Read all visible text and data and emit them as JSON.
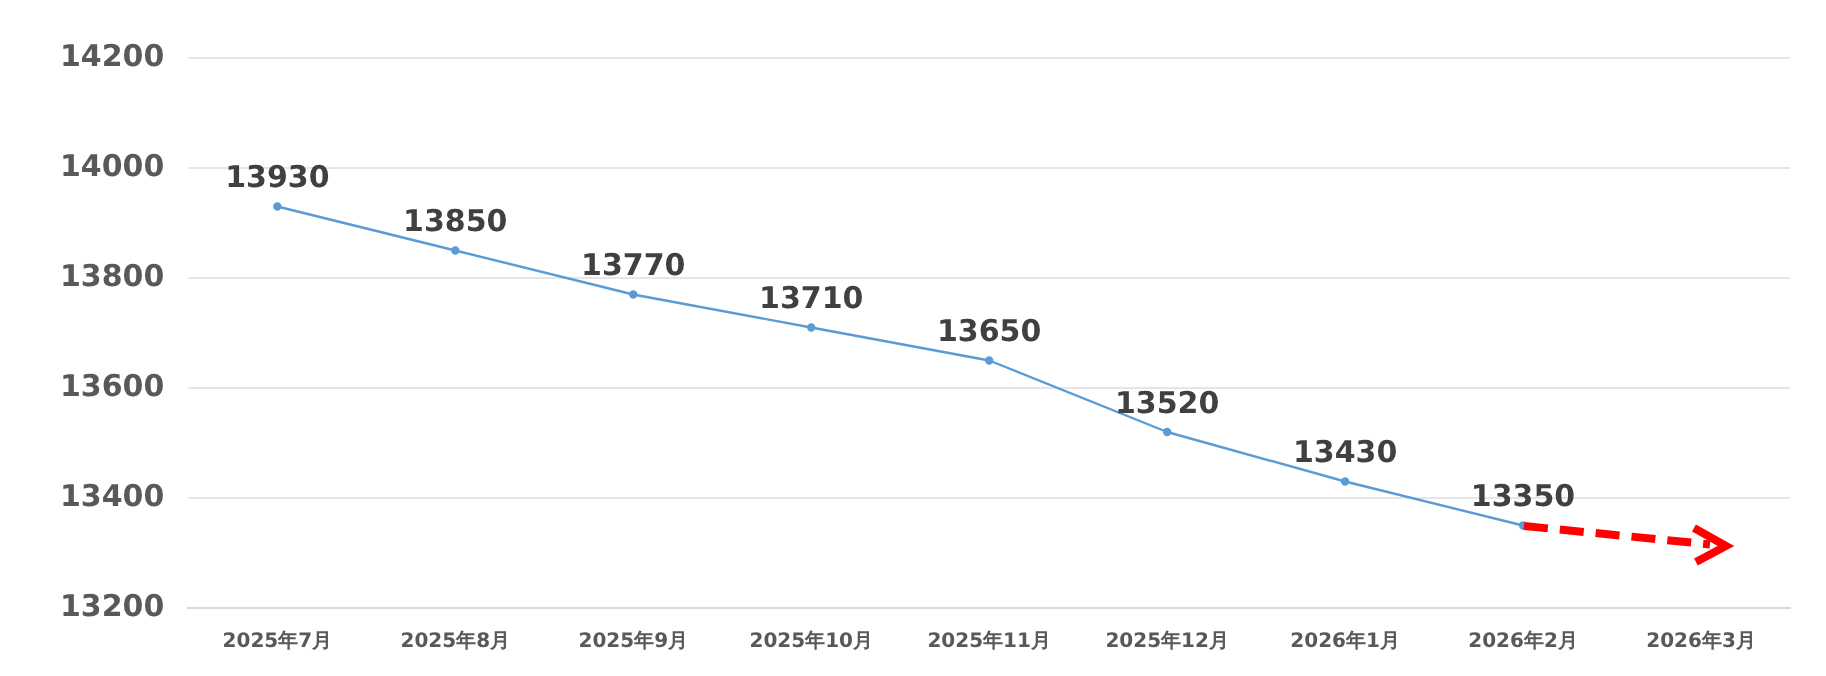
{
  "chart_data": {
    "type": "line",
    "categories": [
      "2025年7月",
      "2025年8月",
      "2025年9月",
      "2025年10月",
      "2025年11月",
      "2025年12月",
      "2026年1月",
      "2026年2月",
      "2026年3月"
    ],
    "series": [
      {
        "color": "#5b9bd5",
        "values": [
          13930,
          13850,
          13770,
          13710,
          13650,
          13520,
          13430,
          13350,
          null
        ]
      }
    ],
    "ylim": [
      13200,
      14200
    ],
    "yticks": [
      13200,
      13400,
      13600,
      13800,
      14000,
      14200
    ],
    "grid": "y",
    "data_labels": true,
    "marker": "circle",
    "line_style": "solid",
    "legend": false
  }
}
